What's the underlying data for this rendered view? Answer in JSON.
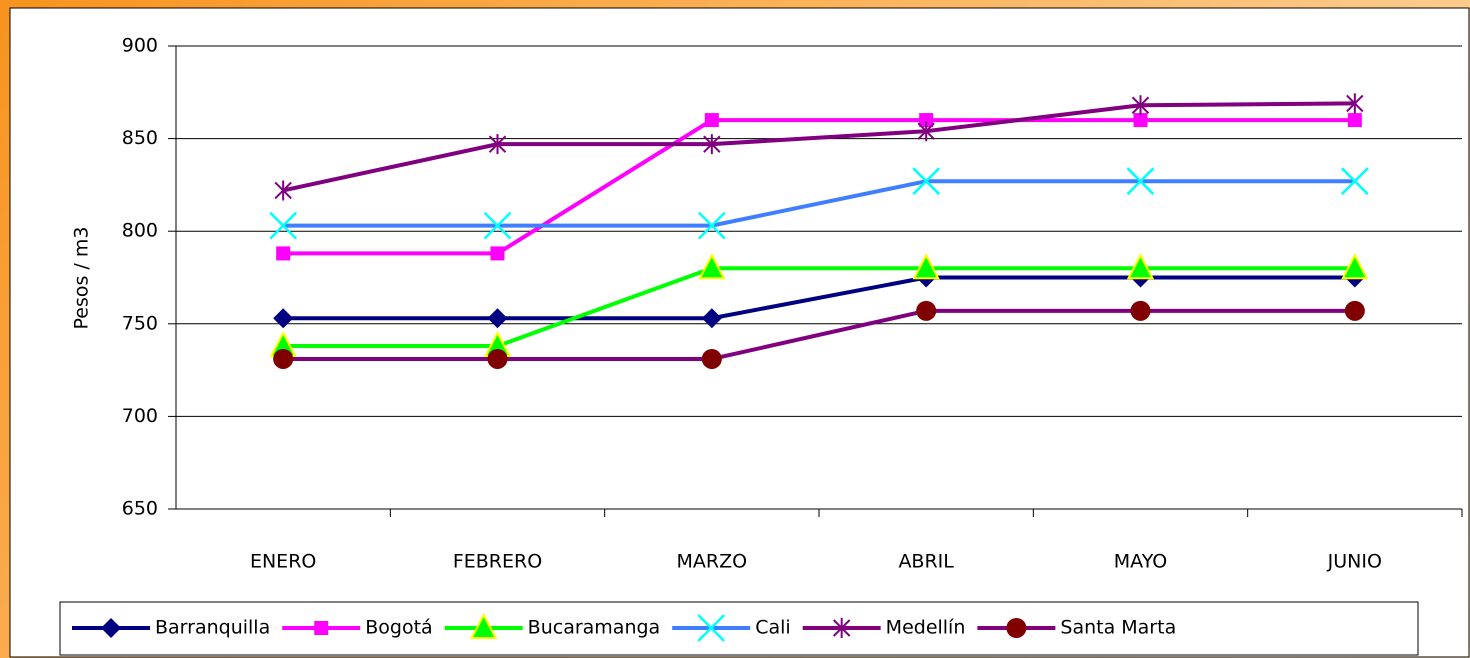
{
  "chart_data": {
    "type": "line",
    "y_label": "Pesos / m3",
    "categories": [
      "ENERO",
      "FEBRERO",
      "MARZO",
      "ABRIL",
      "MAYO",
      "JUNIO"
    ],
    "ylim": [
      650,
      900
    ],
    "yticks": [
      650,
      700,
      750,
      800,
      850,
      900
    ],
    "grid": true,
    "legend": "bottom",
    "series": [
      {
        "name": "Barranquilla",
        "color": "#000080",
        "marker": "diamond",
        "marker_color": "#000080",
        "values": [
          753,
          753,
          753,
          775,
          775,
          775
        ]
      },
      {
        "name": "Bogotá",
        "color": "#ff00ff",
        "marker": "square",
        "marker_color": "#ff00ff",
        "values": [
          788,
          788,
          860,
          860,
          860,
          860
        ]
      },
      {
        "name": "Bucaramanga",
        "color": "#00ff00",
        "marker": "triangle",
        "marker_color": "#00ff00",
        "values": [
          738,
          738,
          780,
          780,
          780,
          780
        ]
      },
      {
        "name": "Cali",
        "color": "#3f7fff",
        "marker": "x",
        "marker_color": "#00ffff",
        "values": [
          803,
          803,
          803,
          827,
          827,
          827
        ]
      },
      {
        "name": "Medellín",
        "color": "#800080",
        "marker": "asterisk",
        "marker_color": "#800080",
        "values": [
          822,
          847,
          847,
          854,
          868,
          869
        ]
      },
      {
        "name": "Santa Marta",
        "color": "#800080",
        "marker": "circle",
        "marker_color": "#800000",
        "values": [
          731,
          731,
          731,
          757,
          757,
          757
        ]
      }
    ]
  }
}
